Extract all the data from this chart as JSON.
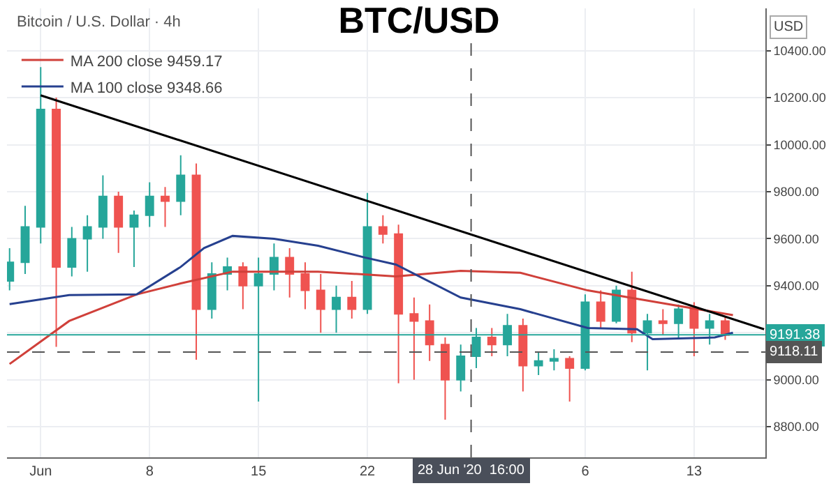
{
  "chart_data": {
    "type": "candlestick",
    "title": "BTC/USD",
    "subtitle": "Bitcoin / U.S. Dollar · 4h",
    "ylabel": "USD",
    "x": [
      "2020-05-30",
      "2020-05-31",
      "2020-06-01",
      "2020-06-02",
      "2020-06-03",
      "2020-06-04",
      "2020-06-05",
      "2020-06-06",
      "2020-06-07",
      "2020-06-08",
      "2020-06-09",
      "2020-06-10",
      "2020-06-11",
      "2020-06-12",
      "2020-06-13",
      "2020-06-14",
      "2020-06-15",
      "2020-06-16",
      "2020-06-17",
      "2020-06-18",
      "2020-06-19",
      "2020-06-20",
      "2020-06-21",
      "2020-06-22",
      "2020-06-23",
      "2020-06-24",
      "2020-06-25",
      "2020-06-26",
      "2020-06-27",
      "2020-06-28",
      "2020-06-29",
      "2020-06-30",
      "2020-07-01",
      "2020-07-02",
      "2020-07-03",
      "2020-07-04",
      "2020-07-05",
      "2020-07-06",
      "2020-07-07",
      "2020-07-08",
      "2020-07-09",
      "2020-07-10",
      "2020-07-11",
      "2020-07-12",
      "2020-07-13",
      "2020-07-14",
      "2020-07-15"
    ],
    "ohlc": [
      [
        9420,
        9560,
        9380,
        9500
      ],
      [
        9500,
        9740,
        9450,
        9650
      ],
      [
        9650,
        10330,
        9580,
        10150
      ],
      [
        10150,
        10200,
        9140,
        9480
      ],
      [
        9480,
        9650,
        9440,
        9600
      ],
      [
        9600,
        9700,
        9460,
        9650
      ],
      [
        9650,
        9870,
        9600,
        9780
      ],
      [
        9780,
        9800,
        9540,
        9650
      ],
      [
        9650,
        9720,
        9480,
        9700
      ],
      [
        9700,
        9840,
        9650,
        9780
      ],
      [
        9780,
        9820,
        9650,
        9760
      ],
      [
        9760,
        9955,
        9700,
        9870
      ],
      [
        9870,
        9920,
        9085,
        9300
      ],
      [
        9300,
        9500,
        9260,
        9450
      ],
      [
        9450,
        9520,
        9380,
        9480
      ],
      [
        9480,
        9500,
        9300,
        9400
      ],
      [
        9400,
        9520,
        8907,
        9450
      ],
      [
        9450,
        9580,
        9380,
        9520
      ],
      [
        9520,
        9560,
        9350,
        9450
      ],
      [
        9450,
        9500,
        9300,
        9380
      ],
      [
        9380,
        9450,
        9200,
        9300
      ],
      [
        9300,
        9400,
        9200,
        9350
      ],
      [
        9350,
        9420,
        9260,
        9300
      ],
      [
        9300,
        9795,
        9280,
        9650
      ],
      [
        9650,
        9700,
        9580,
        9620
      ],
      [
        9620,
        9660,
        8985,
        9280
      ],
      [
        9280,
        9350,
        9000,
        9250
      ],
      [
        9250,
        9320,
        9080,
        9150
      ],
      [
        9150,
        9180,
        8830,
        9000
      ],
      [
        9000,
        9150,
        8950,
        9100
      ],
      [
        9100,
        9220,
        9050,
        9180
      ],
      [
        9180,
        9220,
        9100,
        9150
      ],
      [
        9150,
        9280,
        9100,
        9230
      ],
      [
        9230,
        9260,
        8950,
        9060
      ],
      [
        9060,
        9120,
        9020,
        9080
      ],
      [
        9080,
        9130,
        9040,
        9090
      ],
      [
        9090,
        9100,
        8907,
        9050
      ],
      [
        9050,
        9363,
        9040,
        9330
      ],
      [
        9330,
        9380,
        9220,
        9250
      ],
      [
        9250,
        9400,
        9240,
        9380
      ],
      [
        9380,
        9460,
        9160,
        9200
      ],
      [
        9200,
        9280,
        9040,
        9250
      ],
      [
        9250,
        9300,
        9190,
        9240
      ],
      [
        9240,
        9320,
        9180,
        9300
      ],
      [
        9300,
        9330,
        9100,
        9220
      ],
      [
        9220,
        9280,
        9150,
        9250
      ],
      [
        9250,
        9270,
        9170,
        9190
      ]
    ],
    "series": [
      {
        "name": "MA 200 close 9459.17",
        "type": "line",
        "color": "#d0403a",
        "line_style": "solid",
        "x": [
          "2020-05-30",
          "2020-06-02T20:00",
          "2020-06-07T04:00",
          "2020-06-10",
          "2020-06-13T08:00",
          "2020-06-18T20:00",
          "2020-06-23T20:00",
          "2020-06-28",
          "2020-07-01T20:00",
          "2020-07-06T04:00",
          "2020-07-11T08:00",
          "2020-07-15T12:00"
        ],
        "values": [
          9067,
          9250,
          9363,
          9410,
          9460,
          9460,
          9440,
          9463,
          9455,
          9380,
          9322,
          9275
        ]
      },
      {
        "name": "MA 100 close 9348.66",
        "type": "line",
        "color": "#26408f",
        "line_style": "solid",
        "x": [
          "2020-05-30",
          "2020-06-02T20:00",
          "2020-06-07T04:00",
          "2020-06-10",
          "2020-06-11T12:00",
          "2020-06-13T08:00",
          "2020-06-16",
          "2020-06-18T20:00",
          "2020-06-21T20:00",
          "2020-06-23T20:00",
          "2020-06-28",
          "2020-07-01T20:00",
          "2020-07-06T04:00",
          "2020-07-09T08:00",
          "2020-07-10T08:00",
          "2020-07-14T08:00",
          "2020-07-15T12:00"
        ],
        "values": [
          9322,
          9360,
          9363,
          9480,
          9560,
          9612,
          9600,
          9570,
          9520,
          9490,
          9350,
          9300,
          9220,
          9215,
          9173,
          9180,
          9200
        ]
      },
      {
        "type": "line",
        "color": "#000000",
        "line_style": "solid",
        "x": [
          "2020-06-01",
          "2020-07-17T12:00"
        ],
        "values": [
          10210,
          9215
        ]
      }
    ],
    "ref_lines": [
      {
        "axis": "y",
        "value": 9191.38,
        "label": "9191.38",
        "color": "#26a69a",
        "line_style": "solid"
      },
      {
        "axis": "y",
        "value": 9118.11,
        "label": "9118.11",
        "color": "#555555",
        "line_style": "dashed"
      },
      {
        "axis": "x",
        "value": "2020-06-28T16:00",
        "label": "28 Jun '20  16:00",
        "color": "#555555",
        "line_style": "dashed"
      }
    ],
    "xlim": [
      "2020-05-29T20:00",
      "2020-07-17T14:00"
    ],
    "xticks": [
      {
        "value": "2020-06-01",
        "label": "Jun"
      },
      {
        "value": "2020-06-08",
        "label": "8"
      },
      {
        "value": "2020-06-15",
        "label": "15"
      },
      {
        "value": "2020-06-22",
        "label": "22"
      },
      {
        "value": "2020-07-06",
        "label": "6"
      },
      {
        "value": "2020-07-13",
        "label": "13"
      }
    ],
    "ylim": [
      8670,
      10580
    ],
    "yticks": [
      {
        "value": 8800,
        "label": "8800.00"
      },
      {
        "value": 9000,
        "label": "9000.00"
      },
      {
        "value": 9200,
        "label": null
      },
      {
        "value": 9400,
        "label": "9400.00"
      },
      {
        "value": 9600,
        "label": "9600.00"
      },
      {
        "value": 9800,
        "label": "9800.00"
      },
      {
        "value": 10000,
        "label": "10000.00"
      },
      {
        "value": 10200,
        "label": "10200.00"
      },
      {
        "value": 10400,
        "label": "10400.00"
      }
    ],
    "grid": true,
    "legend": "top left"
  }
}
